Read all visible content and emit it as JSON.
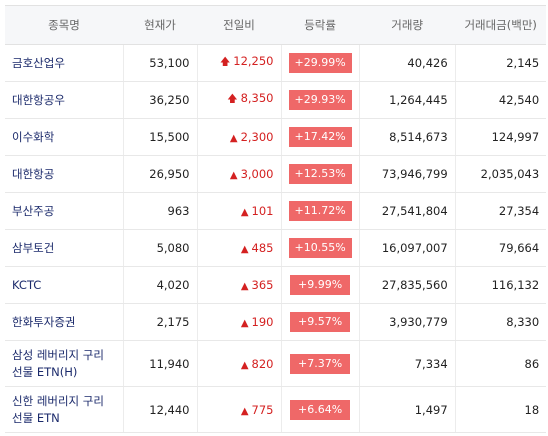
{
  "table": {
    "headers": [
      "종목명",
      "현재가",
      "전일비",
      "등락률",
      "거래량",
      "거래대금(백만)"
    ],
    "accent_color": "#ef6868",
    "rows": [
      {
        "name": "금호산업우",
        "price": "53,100",
        "arrow": "up-arrow-icon",
        "change": "12,250",
        "rate": "+29.99%",
        "volume": "40,426",
        "amount": "2,145"
      },
      {
        "name": "대한항공우",
        "price": "36,250",
        "arrow": "up-arrow-icon",
        "change": "8,350",
        "rate": "+29.93%",
        "volume": "1,264,445",
        "amount": "42,540"
      },
      {
        "name": "이수화학",
        "price": "15,500",
        "arrow": "triangle-up-icon",
        "change": "2,300",
        "rate": "+17.42%",
        "volume": "8,514,673",
        "amount": "124,997"
      },
      {
        "name": "대한항공",
        "price": "26,950",
        "arrow": "triangle-up-icon",
        "change": "3,000",
        "rate": "+12.53%",
        "volume": "73,946,799",
        "amount": "2,035,043"
      },
      {
        "name": "부산주공",
        "price": "963",
        "arrow": "triangle-up-icon",
        "change": "101",
        "rate": "+11.72%",
        "volume": "27,541,804",
        "amount": "27,354"
      },
      {
        "name": "삼부토건",
        "price": "5,080",
        "arrow": "triangle-up-icon",
        "change": "485",
        "rate": "+10.55%",
        "volume": "16,097,007",
        "amount": "79,664"
      },
      {
        "name": "KCTC",
        "price": "4,020",
        "arrow": "triangle-up-icon",
        "change": "365",
        "rate": "+9.99%",
        "volume": "27,835,560",
        "amount": "116,132"
      },
      {
        "name": "한화투자증권",
        "price": "2,175",
        "arrow": "triangle-up-icon",
        "change": "190",
        "rate": "+9.57%",
        "volume": "3,930,779",
        "amount": "8,330"
      },
      {
        "name": "삼성 레버리지 구리 선물 ETN(H)",
        "price": "11,940",
        "arrow": "triangle-up-icon",
        "change": "820",
        "rate": "+7.37%",
        "volume": "7,334",
        "amount": "86"
      },
      {
        "name": "신한 레버리지 구리 선물 ETN",
        "price": "12,440",
        "arrow": "triangle-up-icon",
        "change": "775",
        "rate": "+6.64%",
        "volume": "1,497",
        "amount": "18"
      }
    ]
  }
}
